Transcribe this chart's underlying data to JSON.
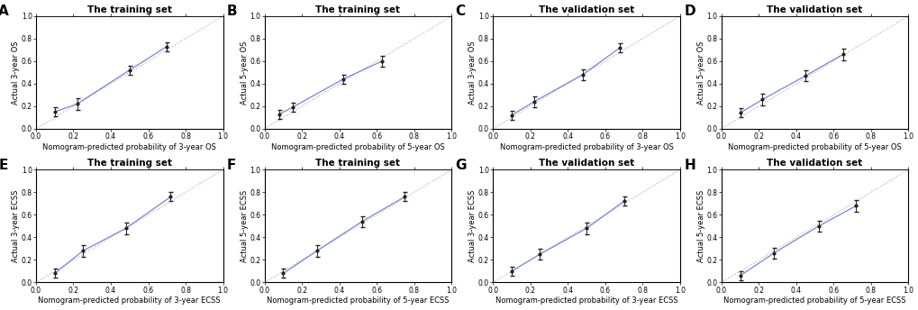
{
  "panels": [
    {
      "label": "A",
      "title": "The training set",
      "xlabel": "Nomogram-predicted probability of 3-year OS",
      "ylabel": "Actual 3-year OS",
      "xlim": [
        0.0,
        1.0
      ],
      "ylim": [
        0.0,
        1.0
      ],
      "xticks": [
        0.0,
        0.2,
        0.4,
        0.6,
        0.8,
        1.0
      ],
      "yticks": [
        0.0,
        0.2,
        0.4,
        0.6,
        0.8,
        1.0
      ],
      "points_x": [
        0.1,
        0.22,
        0.5,
        0.7
      ],
      "points_y": [
        0.15,
        0.22,
        0.52,
        0.73
      ],
      "err_low": [
        0.04,
        0.05,
        0.04,
        0.04
      ],
      "err_high": [
        0.04,
        0.05,
        0.04,
        0.04
      ],
      "line_color": "#7788CC",
      "dot_color": "#222222"
    },
    {
      "label": "B",
      "title": "The training set",
      "xlabel": "Nomogram-predicted probability of 5-year OS",
      "ylabel": "Actual 5-year OS",
      "xlim": [
        0.0,
        1.0
      ],
      "ylim": [
        0.0,
        1.0
      ],
      "xticks": [
        0.0,
        0.2,
        0.4,
        0.6,
        0.8,
        1.0
      ],
      "yticks": [
        0.0,
        0.2,
        0.4,
        0.6,
        0.8,
        1.0
      ],
      "points_x": [
        0.08,
        0.15,
        0.42,
        0.63
      ],
      "points_y": [
        0.13,
        0.19,
        0.44,
        0.6
      ],
      "err_low": [
        0.04,
        0.04,
        0.04,
        0.05
      ],
      "err_high": [
        0.04,
        0.04,
        0.04,
        0.05
      ],
      "line_color": "#7788CC",
      "dot_color": "#222222"
    },
    {
      "label": "C",
      "title": "The validation set",
      "xlabel": "Nomogram-predicted probability of 3-year OS",
      "ylabel": "Actual 3-year OS",
      "xlim": [
        0.0,
        1.0
      ],
      "ylim": [
        0.0,
        1.0
      ],
      "xticks": [
        0.0,
        0.2,
        0.4,
        0.6,
        0.8,
        1.0
      ],
      "yticks": [
        0.0,
        0.2,
        0.4,
        0.6,
        0.8,
        1.0
      ],
      "points_x": [
        0.1,
        0.22,
        0.48,
        0.68
      ],
      "points_y": [
        0.12,
        0.24,
        0.48,
        0.72
      ],
      "err_low": [
        0.04,
        0.05,
        0.05,
        0.04
      ],
      "err_high": [
        0.04,
        0.05,
        0.05,
        0.04
      ],
      "line_color": "#7788CC",
      "dot_color": "#222222"
    },
    {
      "label": "D",
      "title": "The validation set",
      "xlabel": "Nomogram-predicted probability of 5-year OS",
      "ylabel": "Actual 5-year OS",
      "xlim": [
        0.0,
        1.0
      ],
      "ylim": [
        0.0,
        1.0
      ],
      "xticks": [
        0.0,
        0.2,
        0.4,
        0.6,
        0.8,
        1.0
      ],
      "yticks": [
        0.0,
        0.2,
        0.4,
        0.6,
        0.8,
        1.0
      ],
      "points_x": [
        0.1,
        0.22,
        0.45,
        0.65
      ],
      "points_y": [
        0.14,
        0.26,
        0.47,
        0.66
      ],
      "err_low": [
        0.04,
        0.05,
        0.05,
        0.05
      ],
      "err_high": [
        0.04,
        0.05,
        0.05,
        0.05
      ],
      "line_color": "#7788CC",
      "dot_color": "#222222"
    },
    {
      "label": "E",
      "title": "The training set",
      "xlabel": "Nomogram-predicted probability of 3-year ECSS",
      "ylabel": "Actual 3-year ECSS",
      "xlim": [
        0.0,
        1.0
      ],
      "ylim": [
        0.0,
        1.0
      ],
      "xticks": [
        0.0,
        0.2,
        0.4,
        0.6,
        0.8,
        1.0
      ],
      "yticks": [
        0.0,
        0.2,
        0.4,
        0.6,
        0.8,
        1.0
      ],
      "points_x": [
        0.1,
        0.25,
        0.48,
        0.72
      ],
      "points_y": [
        0.08,
        0.28,
        0.48,
        0.76
      ],
      "err_low": [
        0.04,
        0.05,
        0.05,
        0.04
      ],
      "err_high": [
        0.04,
        0.05,
        0.05,
        0.04
      ],
      "line_color": "#7788CC",
      "dot_color": "#222222"
    },
    {
      "label": "F",
      "title": "The training set",
      "xlabel": "Nomogram-predicted probability of 5-year ECSS",
      "ylabel": "Actual 5-year ECSS",
      "xlim": [
        0.0,
        1.0
      ],
      "ylim": [
        0.0,
        1.0
      ],
      "xticks": [
        0.0,
        0.2,
        0.4,
        0.6,
        0.8,
        1.0
      ],
      "yticks": [
        0.0,
        0.2,
        0.4,
        0.6,
        0.8,
        1.0
      ],
      "points_x": [
        0.1,
        0.28,
        0.52,
        0.75
      ],
      "points_y": [
        0.08,
        0.28,
        0.54,
        0.76
      ],
      "err_low": [
        0.04,
        0.05,
        0.05,
        0.04
      ],
      "err_high": [
        0.04,
        0.05,
        0.05,
        0.04
      ],
      "line_color": "#7788CC",
      "dot_color": "#222222"
    },
    {
      "label": "G",
      "title": "The validation set",
      "xlabel": "Nomogram-predicted probability of 3-year ECSS",
      "ylabel": "Actual 3-year ECSS",
      "xlim": [
        0.0,
        1.0
      ],
      "ylim": [
        0.0,
        1.0
      ],
      "xticks": [
        0.0,
        0.2,
        0.4,
        0.6,
        0.8,
        1.0
      ],
      "yticks": [
        0.0,
        0.2,
        0.4,
        0.6,
        0.8,
        1.0
      ],
      "points_x": [
        0.1,
        0.25,
        0.5,
        0.7
      ],
      "points_y": [
        0.1,
        0.25,
        0.48,
        0.72
      ],
      "err_low": [
        0.04,
        0.05,
        0.05,
        0.04
      ],
      "err_high": [
        0.04,
        0.05,
        0.05,
        0.04
      ],
      "line_color": "#7788CC",
      "dot_color": "#222222"
    },
    {
      "label": "H",
      "title": "The validation set",
      "xlabel": "Nomogram-predicted probability of 5-year ECSS",
      "ylabel": "Actual 5-year ECSS",
      "xlim": [
        0.0,
        1.0
      ],
      "ylim": [
        0.0,
        1.0
      ],
      "xticks": [
        0.0,
        0.2,
        0.4,
        0.6,
        0.8,
        1.0
      ],
      "yticks": [
        0.0,
        0.2,
        0.4,
        0.6,
        0.8,
        1.0
      ],
      "points_x": [
        0.1,
        0.28,
        0.52,
        0.72
      ],
      "points_y": [
        0.06,
        0.26,
        0.5,
        0.68
      ],
      "err_low": [
        0.04,
        0.05,
        0.05,
        0.05
      ],
      "err_high": [
        0.04,
        0.05,
        0.05,
        0.05
      ],
      "line_color": "#7788CC",
      "dot_color": "#222222"
    }
  ],
  "background_color": "#ffffff",
  "figure_background": "#ffffff",
  "label_fontsize": 6.0,
  "title_fontsize": 7.5,
  "tick_fontsize": 5.5,
  "panel_label_fontsize": 11.0
}
